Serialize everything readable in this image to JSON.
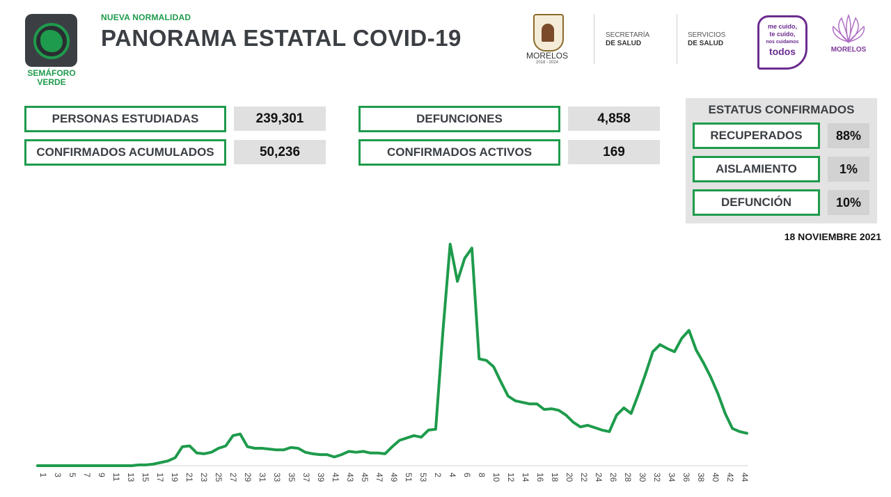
{
  "header": {
    "semaforo_label_1": "SEMÁFORO",
    "semaforo_label_2": "VERDE",
    "kicker": "NUEVA NORMALIDAD",
    "title": "PANORAMA ESTATAL COVID-19",
    "logos": {
      "morelos": "MORELOS",
      "morelos_years": "2018 - 2024",
      "secretaria_1": "SECRETARÍA",
      "secretaria_2": "DE SALUD",
      "servicios_1": "SERVICIOS",
      "servicios_2": "DE SALUD",
      "mecuido_1": "me cuido,",
      "mecuido_2": "te cuido,",
      "mecuido_3": "nos cuidamos",
      "mecuido_4": "todos",
      "morelos_flower": "MORELOS"
    }
  },
  "stats": {
    "personas_estudiadas": {
      "label": "PERSONAS ESTUDIADAS",
      "value": "239,301"
    },
    "confirmados_acumulados": {
      "label": "CONFIRMADOS ACUMULADOS",
      "value": "50,236"
    },
    "defunciones": {
      "label": "DEFUNCIONES",
      "value": "4,858"
    },
    "confirmados_activos": {
      "label": "CONFIRMADOS ACTIVOS",
      "value": "169"
    }
  },
  "status": {
    "title": "ESTATUS CONFIRMADOS",
    "recuperados": {
      "label": "RECUPERADOS",
      "value": "88%"
    },
    "aislamiento": {
      "label": "AISLAMIENTO",
      "value": "1%"
    },
    "defuncion": {
      "label": "DEFUNCIÓN",
      "value": "10%"
    }
  },
  "date": "18 NOVIEMBRE 2021",
  "colors": {
    "green": "#1e9b4c",
    "dark": "#3b3f44",
    "purple": "#6b2c8f"
  },
  "chart_data": {
    "type": "line",
    "title": "",
    "xlabel": "",
    "ylabel": "",
    "tick_labels": [
      "1",
      "3",
      "5",
      "7",
      "9",
      "11",
      "13",
      "15",
      "17",
      "19",
      "21",
      "23",
      "25",
      "27",
      "29",
      "31",
      "33",
      "35",
      "37",
      "39",
      "41",
      "43",
      "45",
      "47",
      "49",
      "51",
      "53",
      "2",
      "4",
      "6",
      "8",
      "10",
      "12",
      "14",
      "16",
      "18",
      "20",
      "22",
      "24",
      "26",
      "28",
      "30",
      "32",
      "34",
      "36",
      "38",
      "40",
      "42",
      "44"
    ],
    "series": [
      {
        "name": "",
        "color": "#1e9b4c",
        "values": [
          0,
          0,
          0,
          0,
          0,
          0,
          0,
          0,
          0,
          0,
          0,
          0,
          0,
          0,
          1,
          1,
          2,
          4,
          6,
          10,
          24,
          25,
          16,
          15,
          17,
          22,
          25,
          38,
          40,
          24,
          22,
          22,
          21,
          20,
          20,
          23,
          22,
          17,
          15,
          14,
          14,
          11,
          14,
          18,
          17,
          18,
          16,
          16,
          15,
          24,
          32,
          35,
          38,
          36,
          45,
          46,
          170,
          280,
          233,
          262,
          275,
          135,
          133,
          125,
          106,
          88,
          82,
          80,
          78,
          78,
          71,
          72,
          70,
          64,
          55,
          49,
          51,
          48,
          45,
          43,
          64,
          73,
          66,
          90,
          116,
          144,
          153,
          148,
          144,
          161,
          171,
          146,
          130,
          112,
          91,
          66,
          47,
          43,
          41
        ]
      }
    ],
    "ylim": [
      0,
      300
    ]
  }
}
